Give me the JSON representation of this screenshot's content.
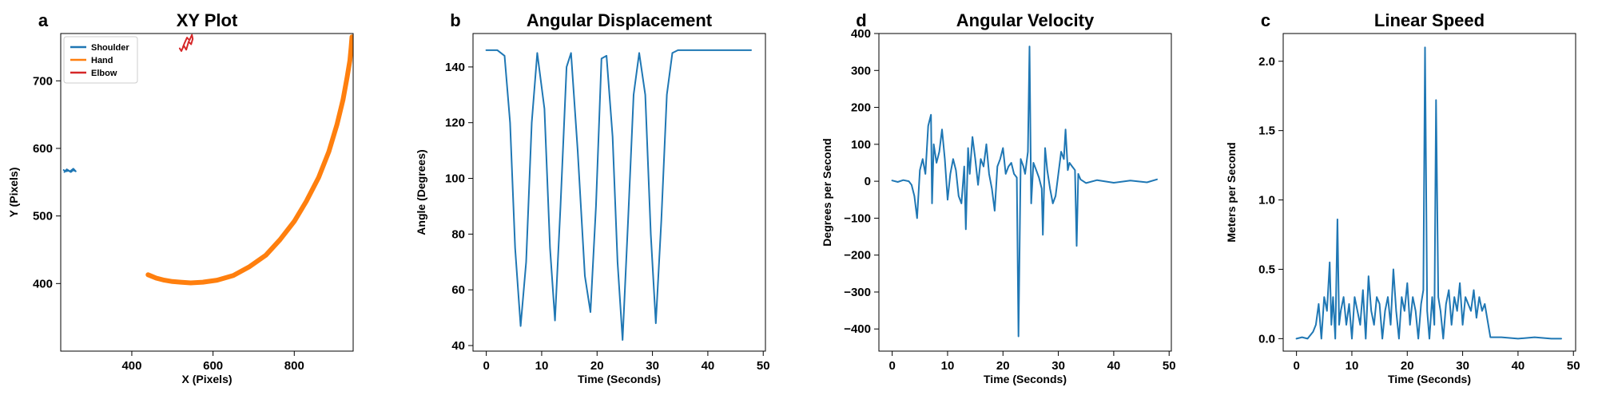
{
  "chart_data": [
    {
      "letter": "a",
      "type": "line",
      "title": "XY Plot",
      "xlabel": "X (Pixels)",
      "ylabel": "Y (Pixels)",
      "xlim": [
        225,
        945
      ],
      "ylim": [
        300,
        770
      ],
      "xticks": [
        400,
        600,
        800
      ],
      "yticks": [
        400,
        500,
        600,
        700
      ],
      "grid": false,
      "legend_position": "top-left",
      "series": [
        {
          "name": "Shoulder",
          "color": "#1f77b4",
          "x": [
            232,
            238,
            244,
            250,
            256,
            262,
            256,
            248,
            240,
            234
          ],
          "y": [
            568,
            566,
            567,
            565,
            568,
            566,
            570,
            566,
            569,
            565
          ]
        },
        {
          "name": "Hand",
          "color": "#ff7f0e",
          "x": [
            440,
            460,
            480,
            500,
            520,
            545,
            575,
            610,
            650,
            690,
            730,
            765,
            800,
            830,
            860,
            885,
            905,
            920,
            930,
            937,
            940,
            942
          ],
          "y": [
            413,
            408,
            405,
            403,
            402,
            401,
            402,
            405,
            412,
            425,
            442,
            465,
            492,
            522,
            557,
            595,
            635,
            672,
            705,
            730,
            750,
            765
          ]
        },
        {
          "name": "Elbow",
          "color": "#d62728",
          "x": [
            518,
            522,
            528,
            534,
            540,
            546,
            550,
            548,
            542,
            536,
            530,
            526
          ],
          "y": [
            748,
            744,
            752,
            746,
            758,
            754,
            762,
            768,
            760,
            764,
            756,
            750
          ]
        }
      ]
    },
    {
      "letter": "b",
      "type": "line",
      "title": "Angular Displacement",
      "xlabel": "Time (Seconds)",
      "ylabel": "Angle (Degrees)",
      "xlim": [
        -2.4,
        50.4
      ],
      "ylim": [
        38,
        152
      ],
      "xticks": [
        0,
        10,
        20,
        30,
        40,
        50
      ],
      "yticks": [
        40,
        60,
        80,
        100,
        120,
        140
      ],
      "grid": false,
      "series": [
        {
          "color": "#1f77b4",
          "x": [
            0,
            1,
            2,
            3.3,
            4.3,
            5.2,
            6.2,
            7.2,
            8.2,
            9.2,
            10.5,
            11.5,
            12.4,
            13.4,
            14.5,
            15.3,
            16.5,
            17.8,
            18.8,
            19.8,
            20.8,
            21.7,
            22.8,
            23.7,
            24.6,
            25.6,
            26.6,
            27.6,
            28.7,
            29.7,
            30.6,
            31.6,
            32.6,
            33.6,
            34.6,
            36,
            40,
            44,
            47.8
          ],
          "y": [
            146,
            146,
            146,
            144,
            120,
            75,
            47,
            70,
            120,
            145,
            125,
            75,
            49,
            90,
            140,
            145,
            110,
            65,
            52,
            90,
            143,
            144,
            115,
            70,
            42,
            85,
            130,
            145,
            130,
            80,
            48,
            85,
            130,
            145,
            146,
            146,
            146,
            146,
            146
          ]
        }
      ]
    },
    {
      "letter": "d",
      "type": "line",
      "title": "Angular Velocity",
      "xlabel": "Time (Seconds)",
      "ylabel": "Degrees per Second",
      "xlim": [
        -2.4,
        50.4
      ],
      "ylim": [
        -460,
        400
      ],
      "xticks": [
        0,
        10,
        20,
        30,
        40,
        50
      ],
      "yticks": [
        -400,
        -300,
        -200,
        -100,
        0,
        100,
        200,
        300,
        400
      ],
      "grid": false,
      "series": [
        {
          "color": "#1f77b4",
          "x": [
            0,
            1,
            2,
            3,
            3.5,
            4,
            4.5,
            5,
            5.5,
            6,
            6.5,
            7,
            7.2,
            7.5,
            8,
            8.5,
            9,
            9.5,
            10,
            10.5,
            11,
            11.5,
            12,
            12.5,
            13,
            13.3,
            13.7,
            14,
            14.5,
            15,
            15.5,
            16,
            16.5,
            17,
            17.5,
            18,
            18.5,
            19,
            19.5,
            20,
            20.5,
            21,
            21.5,
            22,
            22.5,
            22.8,
            23.2,
            23.7,
            24,
            24.5,
            24.8,
            25.1,
            25.5,
            26,
            26.5,
            27,
            27.2,
            27.6,
            28,
            28.5,
            29,
            29.5,
            30,
            30.5,
            31,
            31.3,
            31.7,
            32,
            32.5,
            33,
            33.3,
            33.6,
            34,
            35,
            37,
            40,
            43,
            46,
            47.8
          ],
          "y": [
            2,
            -2,
            3,
            0,
            -10,
            -40,
            -100,
            30,
            60,
            20,
            150,
            180,
            -60,
            100,
            50,
            80,
            140,
            60,
            -50,
            20,
            60,
            30,
            -40,
            -60,
            40,
            -130,
            90,
            20,
            120,
            60,
            -10,
            60,
            40,
            100,
            20,
            -20,
            -80,
            40,
            60,
            90,
            20,
            40,
            50,
            20,
            10,
            -420,
            60,
            40,
            20,
            80,
            365,
            -60,
            50,
            30,
            10,
            -20,
            -145,
            90,
            30,
            -20,
            -60,
            -40,
            20,
            80,
            60,
            140,
            30,
            50,
            40,
            30,
            -175,
            20,
            5,
            -5,
            3,
            -4,
            2,
            -3,
            5
          ]
        }
      ]
    },
    {
      "letter": "c",
      "type": "line",
      "title": "Linear Speed",
      "xlabel": "Time (Seconds)",
      "ylabel": "Meters per Second",
      "xlim": [
        -2.4,
        50.4
      ],
      "ylim": [
        -0.09,
        2.2
      ],
      "xticks": [
        0,
        10,
        20,
        30,
        40,
        50
      ],
      "yticks": [
        0.0,
        0.5,
        1.0,
        1.5,
        2.0
      ],
      "yticklabels": [
        "0.0",
        "0.5",
        "1.0",
        "1.5",
        "2.0"
      ],
      "grid": false,
      "series": [
        {
          "color": "#1f77b4",
          "x": [
            0,
            1,
            2,
            3,
            3.5,
            4,
            4.5,
            5,
            5.5,
            6,
            6.3,
            6.6,
            7,
            7.4,
            7.7,
            8,
            8.5,
            9,
            9.5,
            10,
            10.5,
            11,
            11.5,
            12,
            12.5,
            13,
            13.5,
            14,
            14.5,
            15,
            15.5,
            16,
            16.5,
            17,
            17.5,
            18,
            18.5,
            19,
            19.5,
            20,
            20.5,
            21,
            21.5,
            22,
            22.5,
            22.9,
            23.2,
            23.6,
            24,
            24.5,
            24.9,
            25.2,
            25.6,
            26,
            26.5,
            27,
            27.5,
            28,
            28.5,
            29,
            29.5,
            30,
            30.5,
            31,
            31.5,
            32,
            32.5,
            33,
            33.5,
            34,
            35,
            37,
            40,
            43,
            46,
            47.8
          ],
          "y": [
            0,
            0.01,
            0,
            0.05,
            0.1,
            0.25,
            0,
            0.3,
            0.2,
            0.55,
            0.1,
            0.3,
            0,
            0.86,
            0.1,
            0.2,
            0.3,
            0.1,
            0.25,
            0,
            0.3,
            0.2,
            0.1,
            0.35,
            0,
            0.45,
            0.2,
            0.1,
            0.3,
            0.25,
            0,
            0.2,
            0.3,
            0.1,
            0.5,
            0.2,
            0,
            0.3,
            0.2,
            0.4,
            0.1,
            0.3,
            0.2,
            0,
            0.25,
            0.35,
            2.1,
            0.2,
            0,
            0.3,
            0.1,
            1.72,
            0.3,
            0.2,
            0,
            0.25,
            0.35,
            0.1,
            0.3,
            0.2,
            0.4,
            0.1,
            0.3,
            0.25,
            0.2,
            0.35,
            0.15,
            0.3,
            0.2,
            0.25,
            0.01,
            0.01,
            0,
            0.01,
            0,
            0
          ]
        }
      ]
    }
  ]
}
